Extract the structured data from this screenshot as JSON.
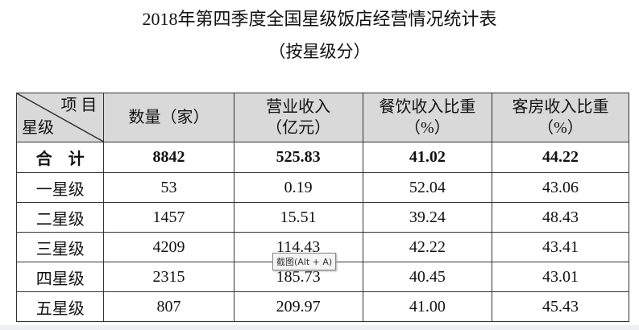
{
  "title": "2018年第四季度全国星级饭店经营情况统计表",
  "subtitle": "（按星级分）",
  "table": {
    "corner": {
      "top": "项 目",
      "bottom": "星级"
    },
    "headers": [
      [
        "数量（家）",
        ""
      ],
      [
        "营业收入",
        "（亿元）"
      ],
      [
        "餐饮收入比重",
        "（%）"
      ],
      [
        "客房收入比重",
        "（%）"
      ]
    ],
    "rows": [
      [
        "合　计",
        "8842",
        "525.83",
        "41.02",
        "44.22"
      ],
      [
        "一星级",
        "53",
        "0.19",
        "52.04",
        "43.06"
      ],
      [
        "二星级",
        "1457",
        "15.51",
        "39.24",
        "48.43"
      ],
      [
        "三星级",
        "4209",
        "114.43",
        "42.22",
        "43.41"
      ],
      [
        "四星级",
        "2315",
        "185.73",
        "40.45",
        "43.01"
      ],
      [
        "五星级",
        "807",
        "209.97",
        "41.00",
        "45.43"
      ]
    ]
  },
  "tooltip": "截图(Alt + A)"
}
